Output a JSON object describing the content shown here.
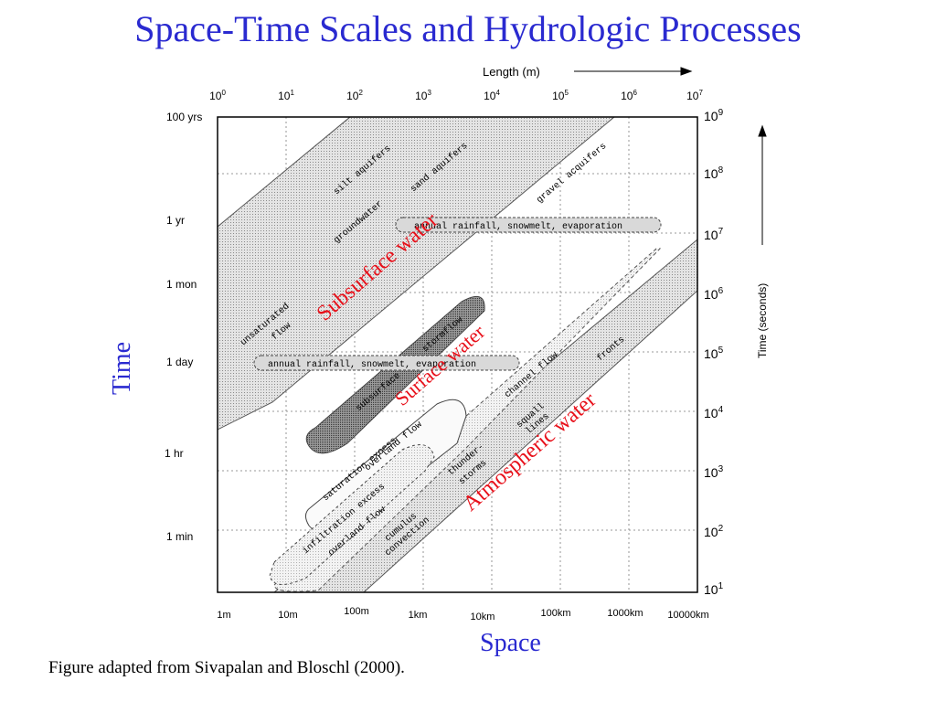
{
  "title": "Space-Time Scales and Hydrologic Processes",
  "caption": "Figure adapted from Sivapalan and Bloschl (2000).",
  "axes": {
    "top_label": "Length (m)",
    "right_label": "Time (seconds)",
    "left_big": "Time",
    "bottom_big": "Space",
    "top_ticks": [
      {
        "b": "10",
        "e": "0"
      },
      {
        "b": "10",
        "e": "1"
      },
      {
        "b": "10",
        "e": "2"
      },
      {
        "b": "10",
        "e": "3"
      },
      {
        "b": "10",
        "e": "4"
      },
      {
        "b": "10",
        "e": "5"
      },
      {
        "b": "10",
        "e": "6"
      },
      {
        "b": "10",
        "e": "7"
      }
    ],
    "right_ticks": [
      {
        "b": "10",
        "e": "9"
      },
      {
        "b": "10",
        "e": "8"
      },
      {
        "b": "10",
        "e": "7"
      },
      {
        "b": "10",
        "e": "6"
      },
      {
        "b": "10",
        "e": "5"
      },
      {
        "b": "10",
        "e": "4"
      },
      {
        "b": "10",
        "e": "3"
      },
      {
        "b": "10",
        "e": "2"
      },
      {
        "b": "10",
        "e": "1"
      }
    ],
    "bottom_ticks": [
      "1m",
      "10m",
      "100m",
      "1km",
      "10km",
      "100km",
      "1000km",
      "10000km"
    ],
    "left_ticks": [
      "100 yrs",
      "1 yr",
      "1 mon",
      "1 day",
      "1 hr",
      "1 min"
    ]
  },
  "labels": {
    "silt": "silt aquifers",
    "sand": "sand aquifers",
    "gravel": "gravel acquifers",
    "groundwater": "groundwater",
    "unsat1": "unsaturated",
    "unsat2": "flow",
    "rain_top": "annual rainfall, snowmelt, evaporation",
    "rain_mid": "annual rainfall, snowmelt, evaporation",
    "stormflow": "stormflow",
    "subsurface": "subsurface",
    "channel": "channel flow",
    "fronts": "fronts",
    "squall1": "squall",
    "squall2": "lines",
    "thunder1": "thunder-",
    "thunder2": "storms",
    "cumulus1": "cumulus",
    "cumulus2": "convection",
    "overland": "overland flow",
    "satex": "saturation excess",
    "infil1": "infiltration excess",
    "infil2": "overland flow",
    "subsurface_water": "Subsurface water",
    "surface_water": "Surface water",
    "atmospheric_water": "Atmospheric water"
  },
  "colors": {
    "title": "#2a2ad0",
    "overlay": "#e8101a",
    "fill": "#d9d9d9",
    "dark_fill": "#8c8c8c"
  }
}
